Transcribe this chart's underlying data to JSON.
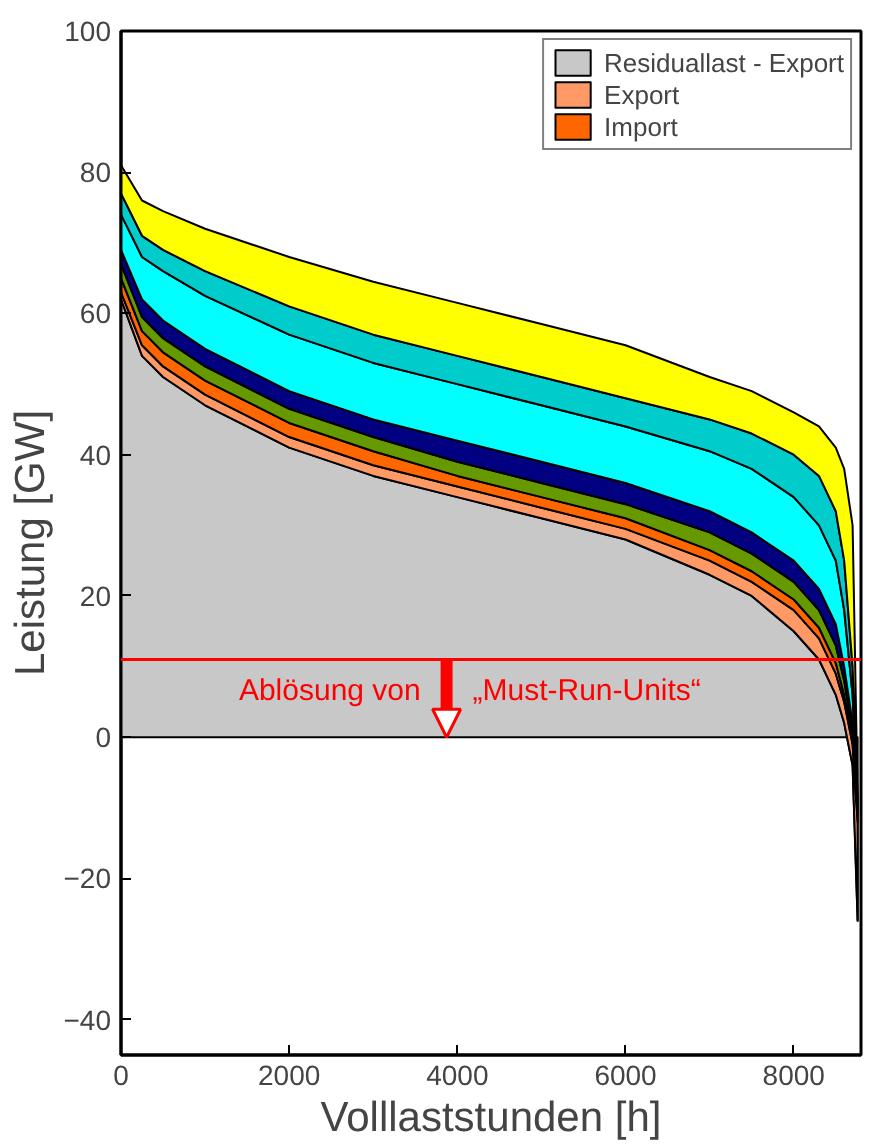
{
  "chart_data": {
    "type": "area",
    "stacked": true,
    "xlabel": "Volllaststunden [h]",
    "ylabel": "Leistung [GW]",
    "x": [
      0,
      250,
      500,
      1000,
      2000,
      3000,
      4000,
      5000,
      6000,
      7000,
      7500,
      8000,
      8300,
      8500,
      8600,
      8700,
      8760
    ],
    "xlim": [
      0,
      8800
    ],
    "xticks": [
      0,
      2000,
      4000,
      6000,
      8000
    ],
    "ylim": [
      -45,
      100
    ],
    "yticks": [
      -40,
      -20,
      0,
      20,
      40,
      60,
      80,
      100
    ],
    "grid": false,
    "legend": "top right",
    "series": [
      {
        "name": "Residuallast - Export",
        "color": "#c8c8c8",
        "values": [
          62,
          54,
          51,
          47,
          41,
          37,
          34,
          31,
          28,
          23,
          20,
          15,
          11,
          6,
          2,
          -4,
          -26
        ]
      },
      {
        "name": "Export",
        "color": "#ff9966",
        "values": [
          1,
          1.5,
          1.5,
          1.5,
          1.5,
          1.5,
          1.5,
          1.5,
          1.5,
          2,
          2,
          3,
          3,
          3,
          3,
          3,
          14
        ]
      },
      {
        "name": "Import",
        "color": "#ff6600",
        "values": [
          2,
          2,
          2,
          2,
          2,
          2,
          1.5,
          1.5,
          1.5,
          1.5,
          1.5,
          1.5,
          1.5,
          1.5,
          1,
          1,
          1
        ]
      },
      {
        "color": "#669900",
        "values": [
          2,
          2,
          2,
          2,
          2,
          2,
          2,
          2,
          2,
          2.5,
          2.5,
          2.5,
          2.5,
          2.5,
          2,
          1,
          0.5
        ]
      },
      {
        "color": "#000080",
        "values": [
          2,
          2.5,
          2.5,
          2.5,
          2.5,
          2.5,
          3,
          3,
          3,
          3,
          3,
          3,
          3,
          3,
          2,
          1,
          0.5
        ]
      },
      {
        "color": "#00ffff",
        "values": [
          5,
          6,
          7,
          7.5,
          8,
          8,
          8,
          8,
          8,
          8.5,
          9,
          9,
          9,
          9,
          8,
          4,
          0.5
        ]
      },
      {
        "color": "#00cccc",
        "values": [
          3,
          3,
          3,
          3.5,
          4,
          4,
          4,
          4,
          4,
          4.5,
          5,
          6,
          7,
          7,
          7,
          4,
          0.5
        ]
      },
      {
        "color": "#ffff00",
        "values": [
          4,
          5,
          5.5,
          6,
          7,
          7.5,
          7.5,
          7.5,
          7.5,
          6,
          6,
          6,
          7,
          9,
          13,
          20,
          0.5
        ]
      }
    ],
    "ref_lines": [
      {
        "axis": "y",
        "value": 11,
        "color": "#ff0000"
      }
    ],
    "annotations": [
      "Ablösung von",
      "„Must-Run-Units“"
    ]
  }
}
